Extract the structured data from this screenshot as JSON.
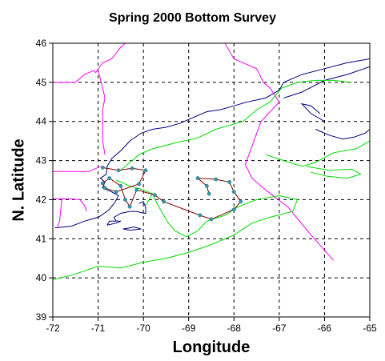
{
  "chart_data": {
    "type": "map",
    "title": "Spring 2000 Bottom Survey",
    "xlabel": "Longitude",
    "ylabel": "N. Latitude",
    "xlim": [
      -72,
      -65
    ],
    "ylim": [
      39,
      46
    ],
    "xticks": [
      "-72",
      "-71",
      "-70",
      "-69",
      "-68",
      "-67",
      "-66",
      "-65"
    ],
    "yticks": [
      "39",
      "40",
      "41",
      "42",
      "43",
      "44",
      "45",
      "46"
    ],
    "grid": true,
    "colors": {
      "coastline": "#000080",
      "boundaries": "#ff00ff",
      "isobath": "#00dd00",
      "track": "#800000",
      "stations": "#3399aa"
    },
    "layers": [
      {
        "name": "",
        "kind": "coastline",
        "color": "#000080",
        "lines": [
          [
            [
              -71.95,
              41.28
            ],
            [
              -71.6,
              41.32
            ],
            [
              -71.3,
              41.45
            ],
            [
              -71.15,
              41.5
            ],
            [
              -71.0,
              41.55
            ],
            [
              -70.9,
              41.62
            ],
            [
              -70.75,
              41.75
            ],
            [
              -70.62,
              41.95
            ],
            [
              -70.55,
              42.1
            ],
            [
              -70.7,
              42.2
            ],
            [
              -70.9,
              42.3
            ],
            [
              -70.85,
              42.45
            ],
            [
              -70.95,
              42.55
            ],
            [
              -70.82,
              42.65
            ],
            [
              -70.8,
              42.85
            ],
            [
              -70.7,
              43.05
            ],
            [
              -70.5,
              43.25
            ],
            [
              -70.3,
              43.5
            ],
            [
              -70.05,
              43.7
            ],
            [
              -69.8,
              43.8
            ],
            [
              -69.5,
              43.85
            ],
            [
              -69.2,
              43.95
            ],
            [
              -68.9,
              44.1
            ],
            [
              -68.6,
              44.25
            ],
            [
              -68.3,
              44.3
            ],
            [
              -68.0,
              44.4
            ],
            [
              -67.7,
              44.5
            ],
            [
              -67.3,
              44.6
            ],
            [
              -67.0,
              44.8
            ],
            [
              -66.9,
              45.0
            ],
            [
              -66.5,
              45.2
            ],
            [
              -66.0,
              45.35
            ],
            [
              -65.5,
              45.5
            ],
            [
              -65.0,
              45.6
            ]
          ],
          [
            [
              -70.1,
              41.9
            ],
            [
              -70.0,
              41.95
            ],
            [
              -69.95,
              41.8
            ],
            [
              -69.95,
              41.65
            ],
            [
              -70.05,
              41.67
            ],
            [
              -70.15,
              41.7
            ],
            [
              -70.3,
              41.7
            ],
            [
              -70.5,
              41.65
            ],
            [
              -70.65,
              41.55
            ],
            [
              -70.6,
              41.45
            ]
          ],
          [
            [
              -70.45,
              41.25
            ],
            [
              -70.3,
              41.22
            ],
            [
              -70.05,
              41.25
            ],
            [
              -70.2,
              41.3
            ],
            [
              -70.45,
              41.25
            ]
          ],
          [
            [
              -70.8,
              41.35
            ],
            [
              -70.6,
              41.4
            ],
            [
              -70.5,
              41.45
            ],
            [
              -70.75,
              41.45
            ],
            [
              -70.8,
              41.35
            ]
          ],
          [
            [
              -66.9,
              44.6
            ],
            [
              -66.5,
              44.75
            ],
            [
              -66.0,
              45.05
            ],
            [
              -65.5,
              45.2
            ],
            [
              -65.0,
              45.4
            ]
          ],
          [
            [
              -66.0,
              44.0
            ],
            [
              -66.3,
              44.2
            ],
            [
              -66.5,
              44.45
            ],
            [
              -66.3,
              44.4
            ],
            [
              -66.1,
              44.2
            ]
          ],
          [
            [
              -66.2,
              43.8
            ],
            [
              -65.9,
              43.65
            ],
            [
              -65.6,
              43.55
            ],
            [
              -65.35,
              43.6
            ],
            [
              -65.1,
              43.7
            ],
            [
              -65.0,
              43.8
            ]
          ]
        ]
      },
      {
        "name": "",
        "kind": "boundary",
        "color": "#ff00ff",
        "lines": [
          [
            [
              -72.0,
              45.0
            ],
            [
              -71.5,
              45.0
            ],
            [
              -71.3,
              45.2
            ],
            [
              -71.1,
              45.3
            ],
            [
              -71.05,
              45.25
            ],
            [
              -70.9,
              45.5
            ],
            [
              -70.7,
              45.6
            ],
            [
              -70.5,
              45.9
            ],
            [
              -70.4,
              46.0
            ]
          ],
          [
            [
              -71.0,
              45.3
            ],
            [
              -70.92,
              44.95
            ],
            [
              -70.85,
              44.6
            ],
            [
              -70.9,
              44.3
            ],
            [
              -70.9,
              43.95
            ],
            [
              -70.9,
              43.5
            ],
            [
              -70.85,
              43.15
            ]
          ],
          [
            [
              -72.0,
              42.72
            ],
            [
              -71.2,
              42.72
            ],
            [
              -70.95,
              42.85
            ]
          ],
          [
            [
              -72.0,
              42.02
            ],
            [
              -71.6,
              42.02
            ],
            [
              -71.4,
              42.0
            ],
            [
              -71.3,
              41.85
            ],
            [
              -71.25,
              41.7
            ]
          ],
          [
            [
              -71.8,
              42.02
            ],
            [
              -71.85,
              41.45
            ],
            [
              -71.9,
              41.28
            ]
          ],
          [
            [
              -68.2,
              46.0
            ],
            [
              -68.0,
              45.6
            ],
            [
              -67.8,
              45.5
            ],
            [
              -67.5,
              45.35
            ],
            [
              -67.35,
              45.0
            ],
            [
              -67.2,
              44.85
            ],
            [
              -67.0,
              44.5
            ],
            [
              -67.4,
              44.0
            ],
            [
              -67.75,
              42.9
            ],
            [
              -67.6,
              42.55
            ],
            [
              -67.3,
              42.25
            ],
            [
              -66.8,
              41.8
            ],
            [
              -66.3,
              41.1
            ],
            [
              -65.8,
              40.45
            ]
          ]
        ]
      },
      {
        "name": "",
        "kind": "isobath",
        "color": "#00dd00",
        "lines": [
          [
            [
              -70.5,
              42.75
            ],
            [
              -70.3,
              42.95
            ],
            [
              -70.1,
              43.15
            ],
            [
              -69.8,
              43.3
            ],
            [
              -69.3,
              43.45
            ],
            [
              -68.8,
              43.58
            ],
            [
              -68.4,
              43.8
            ],
            [
              -67.8,
              44.0
            ],
            [
              -67.5,
              44.3
            ],
            [
              -67.2,
              44.5
            ],
            [
              -66.95,
              44.85
            ],
            [
              -66.6,
              45.0
            ],
            [
              -66.2,
              45.05
            ],
            [
              -65.8,
              45.05
            ],
            [
              -65.4,
              45.0
            ]
          ],
          [
            [
              -70.6,
              42.5
            ],
            [
              -70.3,
              42.35
            ],
            [
              -70.0,
              42.25
            ],
            [
              -69.8,
              42.15
            ],
            [
              -69.9,
              41.95
            ],
            [
              -69.95,
              41.85
            ]
          ],
          [
            [
              -69.8,
              42.15
            ],
            [
              -69.7,
              41.9
            ],
            [
              -69.6,
              41.7
            ],
            [
              -69.45,
              41.4
            ],
            [
              -69.3,
              41.2
            ],
            [
              -69.05,
              41.05
            ],
            [
              -68.8,
              41.2
            ],
            [
              -68.6,
              41.45
            ],
            [
              -68.2,
              41.6
            ],
            [
              -67.9,
              41.82
            ],
            [
              -67.5,
              42.0
            ],
            [
              -67.0,
              42.1
            ],
            [
              -66.6,
              42.0
            ],
            [
              -66.7,
              41.7
            ],
            [
              -67.2,
              41.55
            ],
            [
              -67.6,
              41.4
            ],
            [
              -68.0,
              41.1
            ],
            [
              -68.5,
              40.85
            ],
            [
              -69.0,
              40.65
            ],
            [
              -69.5,
              40.5
            ],
            [
              -70.0,
              40.4
            ],
            [
              -70.5,
              40.25
            ],
            [
              -71.0,
              40.3
            ],
            [
              -71.5,
              40.1
            ],
            [
              -72.0,
              39.95
            ]
          ],
          [
            [
              -67.3,
              43.15
            ],
            [
              -66.9,
              43.0
            ],
            [
              -66.5,
              42.85
            ],
            [
              -66.2,
              42.95
            ],
            [
              -65.8,
              43.2
            ],
            [
              -65.3,
              43.3
            ],
            [
              -65.0,
              43.5
            ]
          ],
          [
            [
              -66.4,
              42.85
            ],
            [
              -65.9,
              42.75
            ],
            [
              -65.4,
              42.78
            ],
            [
              -65.2,
              42.65
            ],
            [
              -65.5,
              42.55
            ],
            [
              -65.95,
              42.6
            ],
            [
              -66.3,
              42.7
            ]
          ]
        ]
      },
      {
        "name": "",
        "kind": "track",
        "color": "#800000",
        "stations": [
          [
            -70.9,
            42.82
          ],
          [
            -70.55,
            42.75
          ],
          [
            -70.25,
            42.8
          ],
          [
            -69.95,
            42.75
          ],
          [
            -70.1,
            42.4
          ],
          [
            -70.6,
            42.2
          ],
          [
            -70.85,
            42.3
          ],
          [
            -70.9,
            42.42
          ],
          [
            -70.75,
            42.55
          ],
          [
            -70.5,
            42.35
          ],
          [
            -70.4,
            42.0
          ],
          [
            -70.3,
            41.82
          ],
          [
            -70.15,
            42.25
          ],
          [
            -69.75,
            42.12
          ],
          [
            -69.55,
            41.95
          ],
          [
            -68.75,
            41.6
          ],
          [
            -68.5,
            41.5
          ],
          [
            -68.0,
            41.75
          ],
          [
            -67.85,
            41.95
          ],
          [
            -68.0,
            42.2
          ],
          [
            -68.1,
            42.45
          ],
          [
            -68.4,
            42.52
          ],
          [
            -68.8,
            42.55
          ],
          [
            -68.6,
            42.35
          ],
          [
            -68.55,
            42.15
          ]
        ]
      }
    ]
  }
}
